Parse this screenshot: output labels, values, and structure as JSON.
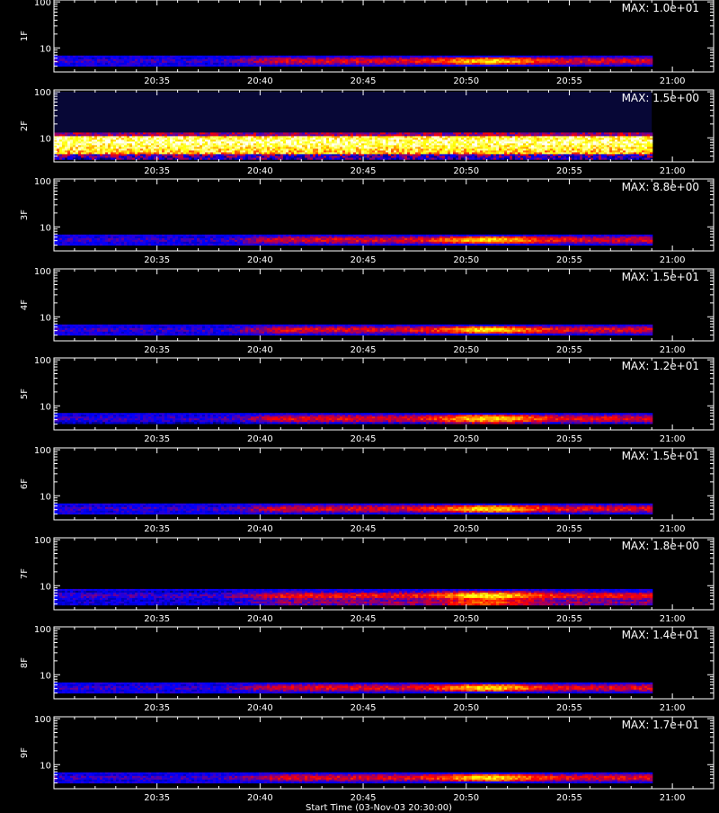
{
  "figure": {
    "xlabel": "Start Time (03-Nov-03 20:30:00)"
  },
  "chart_data": {
    "type": "heatmap",
    "x_range": [
      "20:30",
      "21:02"
    ],
    "data_end": "20:59",
    "x_ticks": [
      "20:35",
      "20:40",
      "20:45",
      "20:50",
      "20:55",
      "21:00"
    ],
    "y_scale": "log",
    "y_range": [
      3,
      110
    ],
    "y_tick_labels": [
      "100",
      "10"
    ],
    "colormap": [
      "#000000",
      "#0000ff",
      "#ff0000",
      "#ffff00",
      "#ffffff"
    ],
    "panels": [
      {
        "label": "1F",
        "max_label": "MAX: 1.0e+01",
        "peak_time": "20:51",
        "band": [
          4.3,
          6.8
        ],
        "pattern": "evolving"
      },
      {
        "label": "2F",
        "max_label": "MAX: 1.5e+00",
        "peak_time": "20:51",
        "band": [
          3.6,
          13
        ],
        "pattern": "saturated"
      },
      {
        "label": "3F",
        "max_label": "MAX: 8.8e+00",
        "peak_time": "20:51",
        "band": [
          4.3,
          6.8
        ],
        "pattern": "evolving"
      },
      {
        "label": "4F",
        "max_label": "MAX: 1.5e+01",
        "peak_time": "20:51",
        "band": [
          4.3,
          6.8
        ],
        "pattern": "evolving"
      },
      {
        "label": "5F",
        "max_label": "MAX: 1.2e+01",
        "peak_time": "20:51",
        "band": [
          4.3,
          7.0
        ],
        "pattern": "evolving"
      },
      {
        "label": "6F",
        "max_label": "MAX: 1.5e+01",
        "peak_time": "20:51",
        "band": [
          4.3,
          6.8
        ],
        "pattern": "evolving"
      },
      {
        "label": "7F",
        "max_label": "MAX: 1.8e+00",
        "peak_time": "20:51",
        "band": [
          3.8,
          8.5
        ],
        "pattern": "two-band"
      },
      {
        "label": "8F",
        "max_label": "MAX: 1.4e+01",
        "peak_time": "20:51",
        "band": [
          4.3,
          6.8
        ],
        "pattern": "evolving"
      },
      {
        "label": "9F",
        "max_label": "MAX: 1.7e+01",
        "peak_time": "20:51",
        "band": [
          4.3,
          6.8
        ],
        "pattern": "evolving"
      }
    ]
  }
}
